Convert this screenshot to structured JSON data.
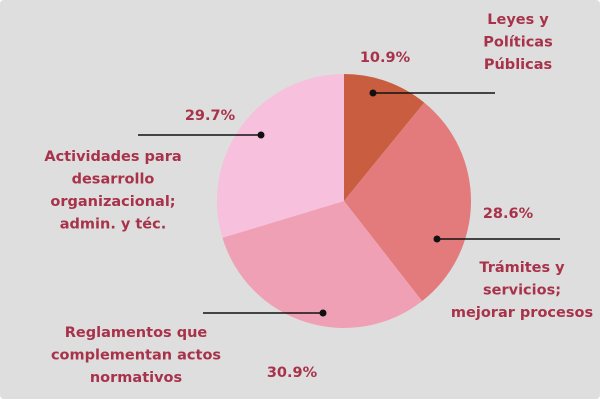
{
  "chart_data": {
    "type": "pie",
    "categories": [
      "Leyes y\nPolíticas\nPúblicas",
      "Trámites y\nservicios;\nmejorar procesos",
      "Reglamentos que\ncomplementan actos\nnormativos",
      "Actividades para\ndesarrollo\norganizacional;\nadmin. y téc."
    ],
    "values": [
      10.9,
      28.6,
      30.9,
      29.7
    ],
    "value_labels": [
      "10.9%",
      "28.6%",
      "30.9%",
      "29.7%"
    ],
    "colors": [
      "#c95d40",
      "#e37b7c",
      "#f0a0b5",
      "#f7c0dc"
    ]
  }
}
